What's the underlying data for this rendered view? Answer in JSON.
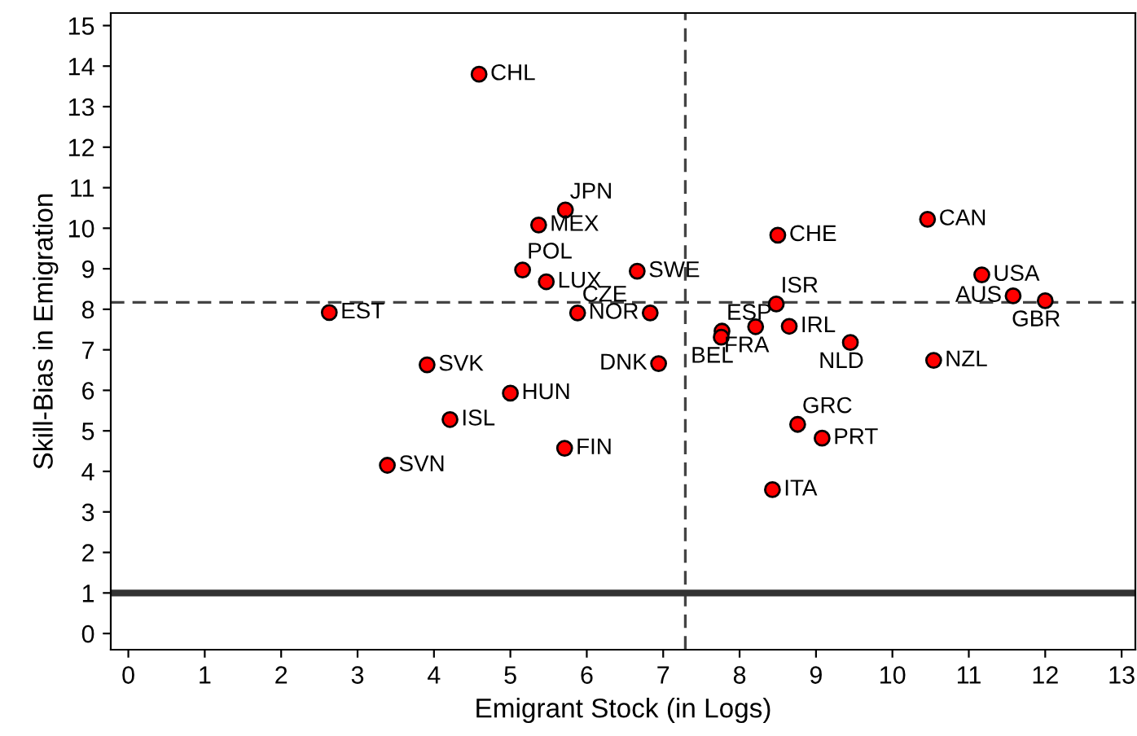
{
  "chart_data": {
    "type": "scatter",
    "xlabel": "Emigrant Stock (in Logs)",
    "ylabel": "Skill-Bias in Emigration",
    "x": [
      4.59,
      5.72,
      5.37,
      5.16,
      5.47,
      2.63,
      5.88,
      6.83,
      3.91,
      6.66,
      8.5,
      10.46,
      8.48,
      7.77,
      7.76,
      8.21,
      8.65,
      9.45,
      11.17,
      11.58,
      12.0,
      10.54,
      6.94,
      8.76,
      9.08,
      8.43,
      5.0,
      4.21,
      5.71,
      3.39
    ],
    "series": [
      {
        "color": "#ff0000",
        "values": [
          13.8,
          10.45,
          10.08,
          8.97,
          8.68,
          7.92,
          7.91,
          7.91,
          6.63,
          8.94,
          9.83,
          10.22,
          8.13,
          7.46,
          7.31,
          7.57,
          7.58,
          7.18,
          8.85,
          8.33,
          8.21,
          6.74,
          6.66,
          5.16,
          4.82,
          3.55,
          5.93,
          5.28,
          4.57,
          4.15
        ]
      }
    ],
    "annotations": [
      {
        "text": "CHL",
        "x": 4.59,
        "y": 13.8
      },
      {
        "text": "JPN",
        "x": 5.72,
        "y": 10.45
      },
      {
        "text": "MEX",
        "x": 5.37,
        "y": 10.08
      },
      {
        "text": "POL",
        "x": 5.16,
        "y": 8.97
      },
      {
        "text": "LUX",
        "x": 5.47,
        "y": 8.68
      },
      {
        "text": "EST",
        "x": 2.63,
        "y": 7.92
      },
      {
        "text": "CZE",
        "x": 5.88,
        "y": 7.91
      },
      {
        "text": "NOR",
        "x": 6.83,
        "y": 7.91
      },
      {
        "text": "SVK",
        "x": 3.91,
        "y": 6.63
      },
      {
        "text": "SWE",
        "x": 6.66,
        "y": 8.94
      },
      {
        "text": "CHE",
        "x": 8.5,
        "y": 9.83
      },
      {
        "text": "CAN",
        "x": 10.46,
        "y": 10.22
      },
      {
        "text": "ISR",
        "x": 8.48,
        "y": 8.13
      },
      {
        "text": "ESP",
        "x": 7.77,
        "y": 7.46
      },
      {
        "text": "BEL",
        "x": 7.76,
        "y": 7.31
      },
      {
        "text": "FRA",
        "x": 8.21,
        "y": 7.57
      },
      {
        "text": "IRL",
        "x": 8.65,
        "y": 7.58
      },
      {
        "text": "NLD",
        "x": 9.45,
        "y": 7.18
      },
      {
        "text": "USA",
        "x": 11.17,
        "y": 8.85
      },
      {
        "text": "AUS",
        "x": 11.58,
        "y": 8.33
      },
      {
        "text": "GBR",
        "x": 12.0,
        "y": 8.21
      },
      {
        "text": "NZL",
        "x": 10.54,
        "y": 6.74
      },
      {
        "text": "DNK",
        "x": 6.94,
        "y": 6.66
      },
      {
        "text": "GRC",
        "x": 8.76,
        "y": 5.16
      },
      {
        "text": "PRT",
        "x": 9.08,
        "y": 4.82
      },
      {
        "text": "ITA",
        "x": 8.43,
        "y": 3.55
      },
      {
        "text": "HUN",
        "x": 5.0,
        "y": 5.93
      },
      {
        "text": "ISL",
        "x": 4.21,
        "y": 5.28
      },
      {
        "text": "FIN",
        "x": 5.71,
        "y": 4.57
      },
      {
        "text": "SVN",
        "x": 3.39,
        "y": 4.15
      }
    ],
    "ref_lines": [
      {
        "axis": "x",
        "value": 7.29,
        "line_style": "dashed",
        "color": "#444444"
      },
      {
        "axis": "y",
        "value": 8.17,
        "line_style": "dashed",
        "color": "#444444"
      },
      {
        "axis": "y",
        "value": 1,
        "line_style": "solid",
        "color": "#333333"
      }
    ],
    "xlim": [
      -0.23,
      13.18
    ],
    "ylim": [
      -0.4,
      15.31
    ],
    "xticks": [
      0,
      1,
      2,
      3,
      4,
      5,
      6,
      7,
      8,
      9,
      10,
      11,
      12,
      13
    ],
    "yticks": [
      0,
      1,
      2,
      3,
      4,
      5,
      6,
      7,
      8,
      9,
      10,
      11,
      12,
      13,
      14,
      15
    ],
    "marker": "circle",
    "grid": false,
    "legend": false
  }
}
